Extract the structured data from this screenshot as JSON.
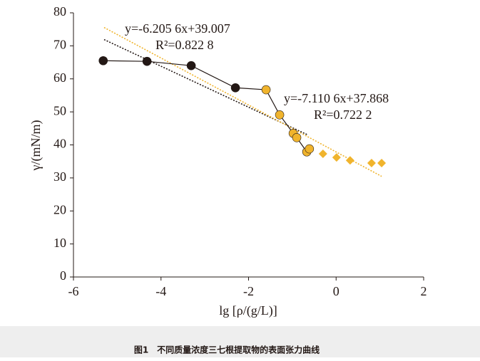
{
  "chart_data": {
    "type": "scatter",
    "xlabel": "lg [ρ/(g/L)]",
    "ylabel": "γ/(mN/m)",
    "xlim": [
      -6,
      2
    ],
    "xticks": [
      -6,
      -4,
      -2,
      0,
      2
    ],
    "ylim": [
      0,
      80
    ],
    "yticks": [
      0,
      10,
      20,
      30,
      40,
      50,
      60,
      70,
      80
    ],
    "series": [
      {
        "marker": "circle",
        "line": true,
        "line_color": "#231815",
        "x": [
          -5.32,
          -4.32,
          -3.31,
          -2.3,
          -1.6,
          -1.29,
          -0.98,
          -0.9,
          -0.67,
          -0.61
        ],
        "values": [
          65.5,
          65.3,
          64.0,
          57.3,
          56.7,
          49.1,
          43.5,
          42.2,
          37.9,
          38.8
        ],
        "colors": [
          "#231815",
          "#231815",
          "#231815",
          "#231815",
          "#f0b42d",
          "#f0b42d",
          "#f0b42d",
          "#f0b42d",
          "#f0b42d",
          "#f0b42d"
        ]
      },
      {
        "marker": "diamond",
        "line": false,
        "color": "#f0b42d",
        "x": [
          -0.3,
          0.01,
          0.32,
          0.81,
          1.04
        ],
        "values": [
          37.3,
          36.2,
          35.3,
          34.5,
          34.5
        ]
      }
    ],
    "trendlines": [
      {
        "slope": -6.2056,
        "intercept": 39.007,
        "x": [
          -5.3,
          -0.65
        ],
        "color": "#231815",
        "label": "y=-6.205 6x+39.007",
        "r2_label": "R²=0.822 8"
      },
      {
        "slope": -7.1106,
        "intercept": 37.868,
        "x": [
          -5.3,
          1.04
        ],
        "color": "#f0b42d",
        "label": "y=-7.110 6x+37.868",
        "r2_label": "R²=0.722 2"
      }
    ],
    "caption": "图1　不同质量浓度三七根提取物的表面张力曲线"
  }
}
